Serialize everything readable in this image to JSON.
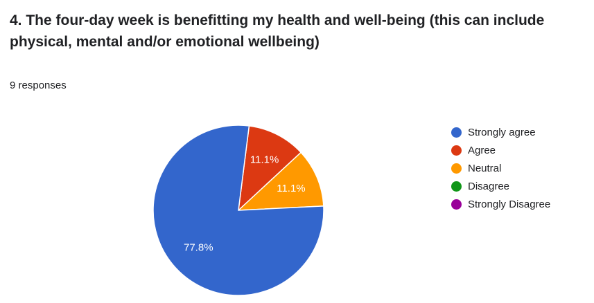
{
  "question": {
    "title": "4. The four-day week is benefitting my health and well-being (this can include physical, mental and/or emotional wellbeing)",
    "response_count": "9 responses"
  },
  "chart_data": {
    "type": "pie",
    "categories": [
      "Strongly agree",
      "Agree",
      "Neutral",
      "Disagree",
      "Strongly Disagree"
    ],
    "values": [
      77.8,
      11.1,
      11.1,
      0,
      0
    ],
    "labels": [
      "77.8%",
      "11.1%",
      "11.1%",
      "",
      ""
    ],
    "colors": [
      "#3366cc",
      "#dc3912",
      "#ff9900",
      "#109618",
      "#990099"
    ],
    "legend_position": "right",
    "title": ""
  }
}
